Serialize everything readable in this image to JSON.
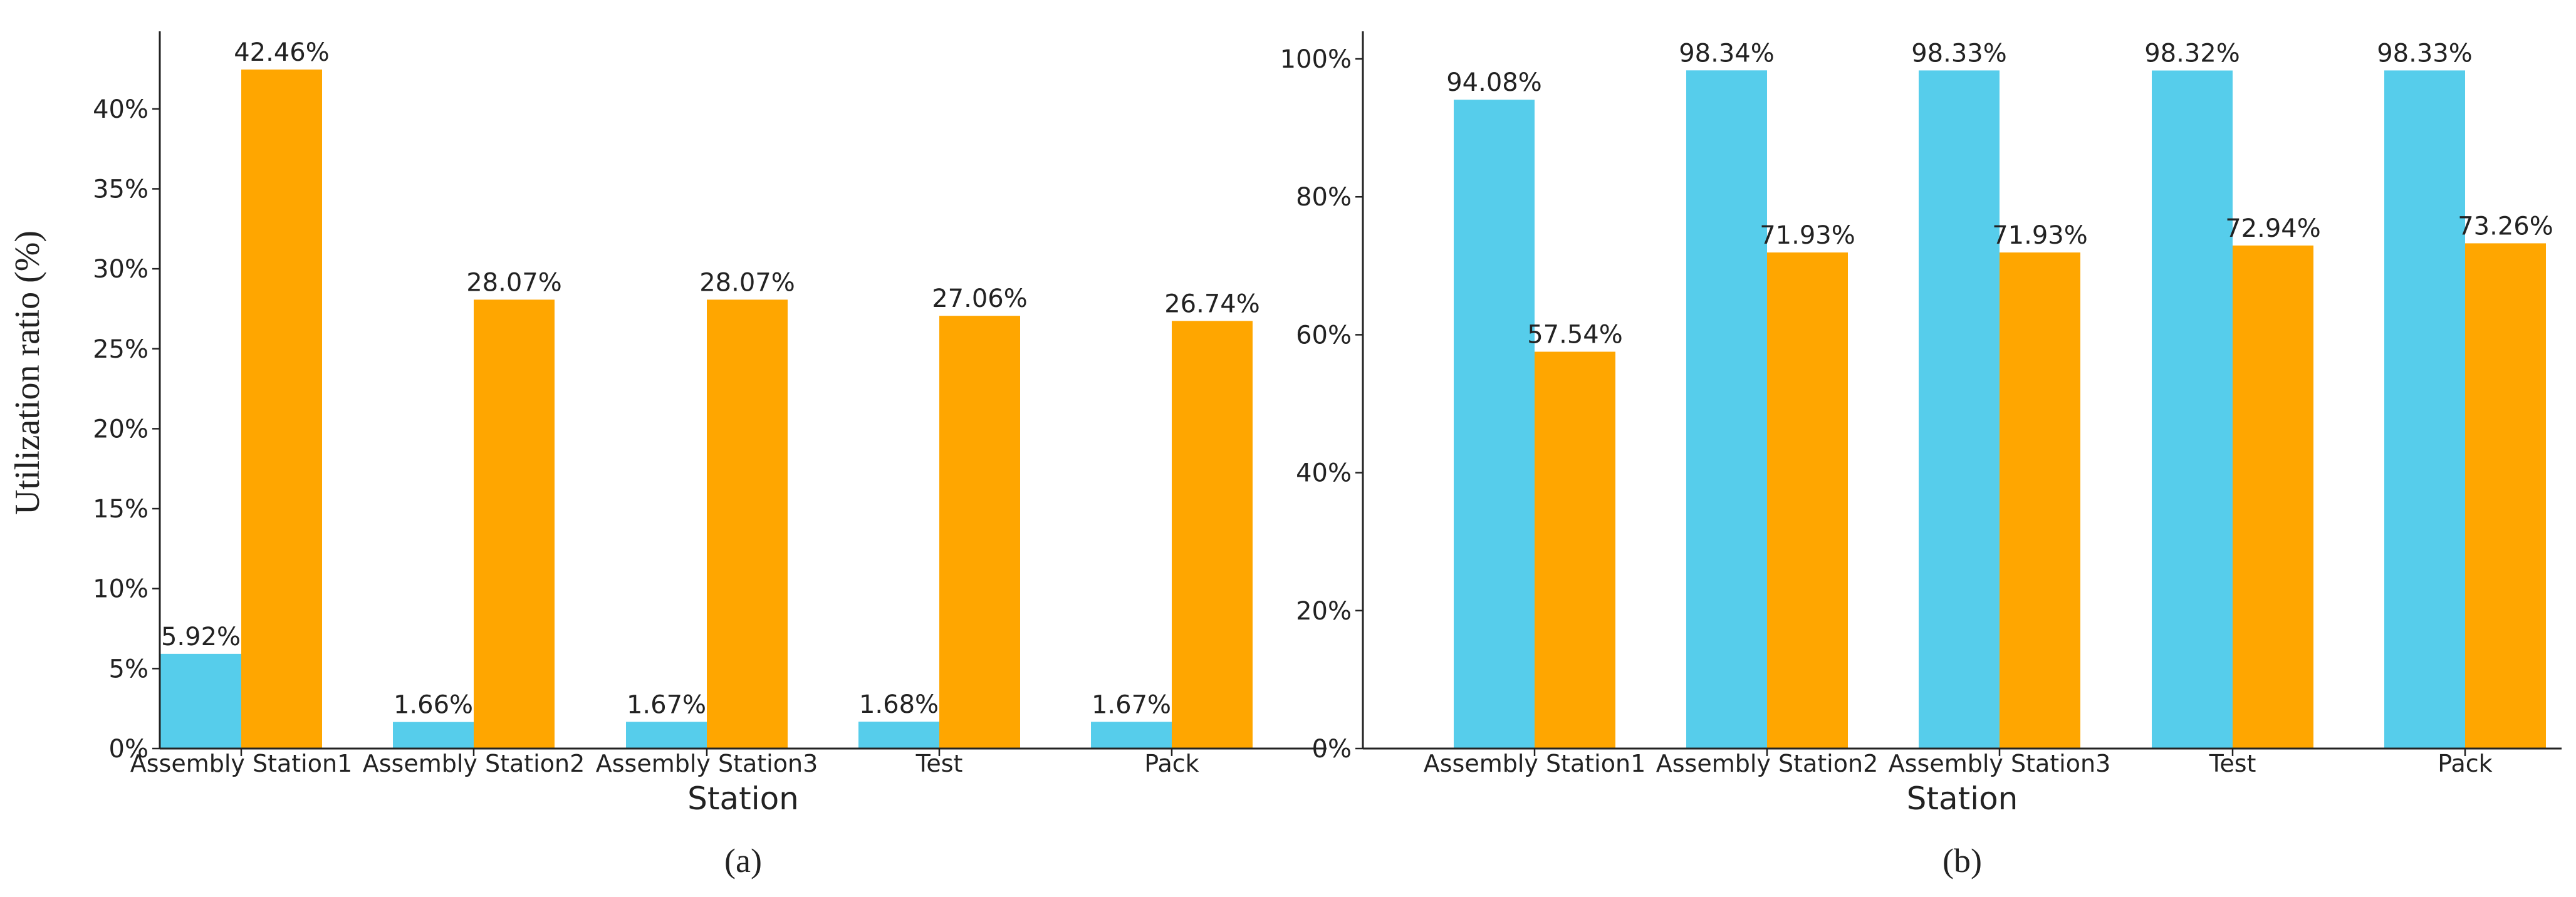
{
  "figure": {
    "ylabel_left": "Utilization ratio (%)"
  },
  "chart_data": [
    {
      "type": "bar",
      "panel_label": "(a)",
      "xlabel": "Station",
      "ylabel": "Utilization ratio (%)",
      "categories": [
        "Assembly Station1",
        "Assembly Station2",
        "Assembly Station3",
        "Test",
        "Pack"
      ],
      "series": [
        {
          "color": "#56CDEB",
          "values": [
            5.92,
            1.66,
            1.67,
            1.68,
            1.67
          ]
        },
        {
          "color": "#FFA600",
          "values": [
            42.46,
            28.07,
            28.07,
            27.06,
            26.74
          ]
        }
      ],
      "data_labels": [
        [
          "5.92%",
          "1.66%",
          "1.67%",
          "1.68%",
          "1.67%"
        ],
        [
          "42.46%",
          "28.07%",
          "28.07%",
          "27.06%",
          "26.74%"
        ]
      ],
      "ylim": [
        0,
        44.85
      ],
      "yticks": [
        0,
        5,
        10,
        15,
        20,
        25,
        30,
        35,
        40
      ],
      "ytick_labels": [
        "0%",
        "5%",
        "10%",
        "15%",
        "20%",
        "25%",
        "30%",
        "35%",
        "40%"
      ],
      "grid": false,
      "legend": "none"
    },
    {
      "type": "bar",
      "panel_label": "(b)",
      "xlabel": "Station",
      "ylabel": "",
      "categories": [
        "Assembly Station1",
        "Assembly Station2",
        "Assembly Station3",
        "Test",
        "Pack"
      ],
      "series": [
        {
          "color": "#56CDEB",
          "values": [
            94.08,
            98.34,
            98.33,
            98.32,
            98.33
          ]
        },
        {
          "color": "#FFA600",
          "values": [
            57.54,
            71.93,
            71.93,
            72.94,
            73.26
          ]
        }
      ],
      "data_labels": [
        [
          "94.08%",
          "98.34%",
          "98.33%",
          "98.32%",
          "98.33%"
        ],
        [
          "57.54%",
          "71.93%",
          "71.93%",
          "72.94%",
          "73.26%"
        ]
      ],
      "ylim": [
        0,
        104
      ],
      "yticks": [
        0,
        20,
        40,
        60,
        80,
        100
      ],
      "ytick_labels": [
        "0%",
        "20%",
        "40%",
        "60%",
        "80%",
        "100%"
      ],
      "grid": false,
      "legend": "none"
    }
  ]
}
